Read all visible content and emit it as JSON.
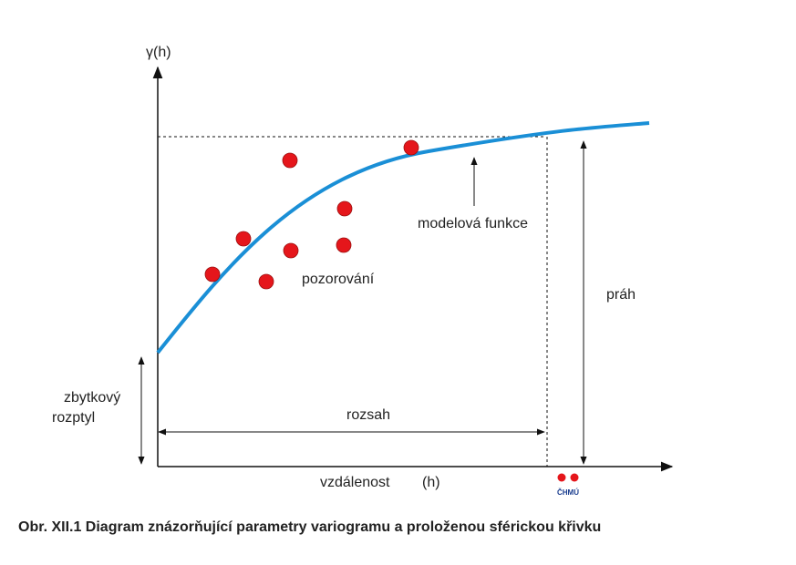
{
  "labels": {
    "y_axis": "γ(h)",
    "model": "modelová funkce",
    "observations": "pozorování",
    "sill": "práh",
    "nugget_1": "zbytkový",
    "nugget_2": "rozptyl",
    "range": "rozsah",
    "x_axis": "vzdálenost",
    "x_axis_unit": "(h)",
    "logo": "ČHMÚ"
  },
  "caption": "Obr. XII.1  Diagram znázorňující parametry variogramu a proloženou sférickou křivku"
}
